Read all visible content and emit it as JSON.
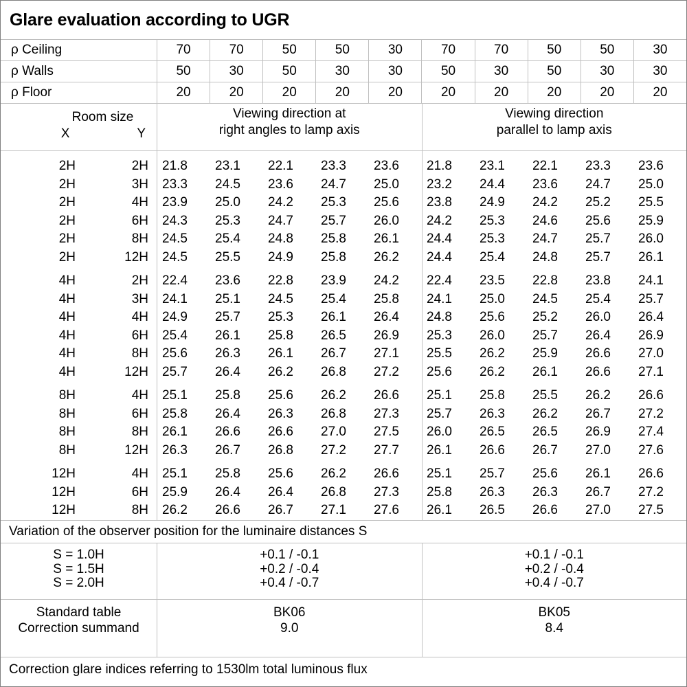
{
  "title": "Glare evaluation according to UGR",
  "colors": {
    "grid_line": "#bfbfbf",
    "outer_border": "#7f7f7f",
    "text": "#000000",
    "background": "#ffffff"
  },
  "reflectance_table": {
    "rows": [
      {
        "label": "ρ Ceiling",
        "values": [
          70,
          70,
          50,
          50,
          30,
          70,
          70,
          50,
          50,
          30
        ]
      },
      {
        "label": "ρ Walls",
        "values": [
          50,
          30,
          50,
          30,
          30,
          50,
          30,
          50,
          30,
          30
        ]
      },
      {
        "label": "ρ Floor",
        "values": [
          20,
          20,
          20,
          20,
          20,
          20,
          20,
          20,
          20,
          20
        ]
      }
    ]
  },
  "room_header": {
    "room_size_label": "Room size",
    "x_label": "X",
    "y_label": "Y"
  },
  "viewing_headers": {
    "group1_lines": [
      "Viewing direction at",
      "right angles to lamp axis"
    ],
    "group2_lines": [
      "Viewing direction",
      "parallel to lamp axis"
    ]
  },
  "ugr_table": {
    "blocks": [
      {
        "rows": [
          {
            "x": "2H",
            "y": "2H",
            "values": [
              "21.8",
              "23.1",
              "22.1",
              "23.3",
              "23.6",
              "21.8",
              "23.1",
              "22.1",
              "23.3",
              "23.6"
            ]
          },
          {
            "x": "2H",
            "y": "3H",
            "values": [
              "23.3",
              "24.5",
              "23.6",
              "24.7",
              "25.0",
              "23.2",
              "24.4",
              "23.6",
              "24.7",
              "25.0"
            ]
          },
          {
            "x": "2H",
            "y": "4H",
            "values": [
              "23.9",
              "25.0",
              "24.2",
              "25.3",
              "25.6",
              "23.8",
              "24.9",
              "24.2",
              "25.2",
              "25.5"
            ]
          },
          {
            "x": "2H",
            "y": "6H",
            "values": [
              "24.3",
              "25.3",
              "24.7",
              "25.7",
              "26.0",
              "24.2",
              "25.3",
              "24.6",
              "25.6",
              "25.9"
            ]
          },
          {
            "x": "2H",
            "y": "8H",
            "values": [
              "24.5",
              "25.4",
              "24.8",
              "25.8",
              "26.1",
              "24.4",
              "25.3",
              "24.7",
              "25.7",
              "26.0"
            ]
          },
          {
            "x": "2H",
            "y": "12H",
            "values": [
              "24.5",
              "25.5",
              "24.9",
              "25.8",
              "26.2",
              "24.4",
              "25.4",
              "24.8",
              "25.7",
              "26.1"
            ]
          }
        ]
      },
      {
        "rows": [
          {
            "x": "4H",
            "y": "2H",
            "values": [
              "22.4",
              "23.6",
              "22.8",
              "23.9",
              "24.2",
              "22.4",
              "23.5",
              "22.8",
              "23.8",
              "24.1"
            ]
          },
          {
            "x": "4H",
            "y": "3H",
            "values": [
              "24.1",
              "25.1",
              "24.5",
              "25.4",
              "25.8",
              "24.1",
              "25.0",
              "24.5",
              "25.4",
              "25.7"
            ]
          },
          {
            "x": "4H",
            "y": "4H",
            "values": [
              "24.9",
              "25.7",
              "25.3",
              "26.1",
              "26.4",
              "24.8",
              "25.6",
              "25.2",
              "26.0",
              "26.4"
            ]
          },
          {
            "x": "4H",
            "y": "6H",
            "values": [
              "25.4",
              "26.1",
              "25.8",
              "26.5",
              "26.9",
              "25.3",
              "26.0",
              "25.7",
              "26.4",
              "26.9"
            ]
          },
          {
            "x": "4H",
            "y": "8H",
            "values": [
              "25.6",
              "26.3",
              "26.1",
              "26.7",
              "27.1",
              "25.5",
              "26.2",
              "25.9",
              "26.6",
              "27.0"
            ]
          },
          {
            "x": "4H",
            "y": "12H",
            "values": [
              "25.7",
              "26.4",
              "26.2",
              "26.8",
              "27.2",
              "25.6",
              "26.2",
              "26.1",
              "26.6",
              "27.1"
            ]
          }
        ]
      },
      {
        "rows": [
          {
            "x": "8H",
            "y": "4H",
            "values": [
              "25.1",
              "25.8",
              "25.6",
              "26.2",
              "26.6",
              "25.1",
              "25.8",
              "25.5",
              "26.2",
              "26.6"
            ]
          },
          {
            "x": "8H",
            "y": "6H",
            "values": [
              "25.8",
              "26.4",
              "26.3",
              "26.8",
              "27.3",
              "25.7",
              "26.3",
              "26.2",
              "26.7",
              "27.2"
            ]
          },
          {
            "x": "8H",
            "y": "8H",
            "values": [
              "26.1",
              "26.6",
              "26.6",
              "27.0",
              "27.5",
              "26.0",
              "26.5",
              "26.5",
              "26.9",
              "27.4"
            ]
          },
          {
            "x": "8H",
            "y": "12H",
            "values": [
              "26.3",
              "26.7",
              "26.8",
              "27.2",
              "27.7",
              "26.1",
              "26.6",
              "26.7",
              "27.0",
              "27.6"
            ]
          }
        ]
      },
      {
        "rows": [
          {
            "x": "12H",
            "y": "4H",
            "values": [
              "25.1",
              "25.8",
              "25.6",
              "26.2",
              "26.6",
              "25.1",
              "25.7",
              "25.6",
              "26.1",
              "26.6"
            ]
          },
          {
            "x": "12H",
            "y": "6H",
            "values": [
              "25.9",
              "26.4",
              "26.4",
              "26.8",
              "27.3",
              "25.8",
              "26.3",
              "26.3",
              "26.7",
              "27.2"
            ]
          },
          {
            "x": "12H",
            "y": "8H",
            "values": [
              "26.2",
              "26.6",
              "26.7",
              "27.1",
              "27.6",
              "26.1",
              "26.5",
              "26.6",
              "27.0",
              "27.5"
            ]
          }
        ]
      }
    ]
  },
  "variation_note": "Variation of the observer position for the luminaire distances S",
  "variation_table": {
    "rows": [
      {
        "label": "S = 1.0H",
        "right_angles": "+0.1 / -0.1",
        "parallel": "+0.1 / -0.1"
      },
      {
        "label": "S = 1.5H",
        "right_angles": "+0.2 / -0.4",
        "parallel": "+0.2 / -0.4"
      },
      {
        "label": "S = 2.0H",
        "right_angles": "+0.4 / -0.7",
        "parallel": "+0.4 / -0.7"
      }
    ]
  },
  "standard_table": {
    "labels": [
      "Standard table",
      "Correction summand"
    ],
    "right_angles": [
      "BK06",
      "9.0"
    ],
    "parallel": [
      "BK05",
      "8.4"
    ]
  },
  "footer_note": "Correction glare indices referring to 1530lm total luminous flux"
}
